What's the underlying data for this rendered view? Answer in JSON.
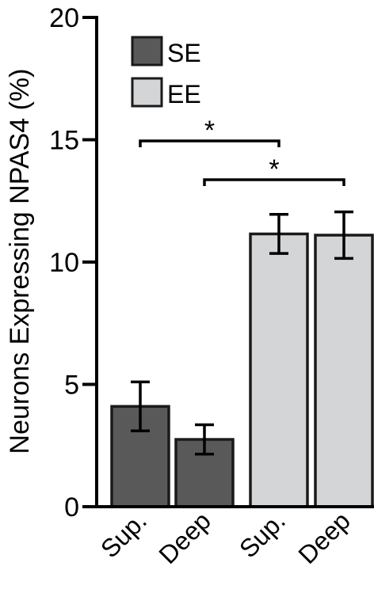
{
  "chart_data": {
    "type": "bar",
    "ylabel": "Neurons Expressing NPAS4 (%)",
    "ylim": [
      0,
      20
    ],
    "yticks": [
      "0",
      "5",
      "10",
      "15",
      "20"
    ],
    "categories": [
      "Sup.",
      "Deep",
      "Sup.",
      "Deep"
    ],
    "series": [
      {
        "name": "SE",
        "color": "#595959",
        "values": [
          4.1,
          2.75,
          null,
          null
        ],
        "errors": [
          1.0,
          0.6,
          null,
          null
        ]
      },
      {
        "name": "EE",
        "color": "#d4d5d6",
        "values": [
          null,
          null,
          11.15,
          11.1
        ],
        "errors": [
          null,
          null,
          0.8,
          0.95
        ]
      }
    ],
    "significance": [
      {
        "from": 0,
        "to": 2,
        "label": "*"
      },
      {
        "from": 1,
        "to": 3,
        "label": "*"
      }
    ],
    "legend_position": "top-left",
    "grid": false
  }
}
